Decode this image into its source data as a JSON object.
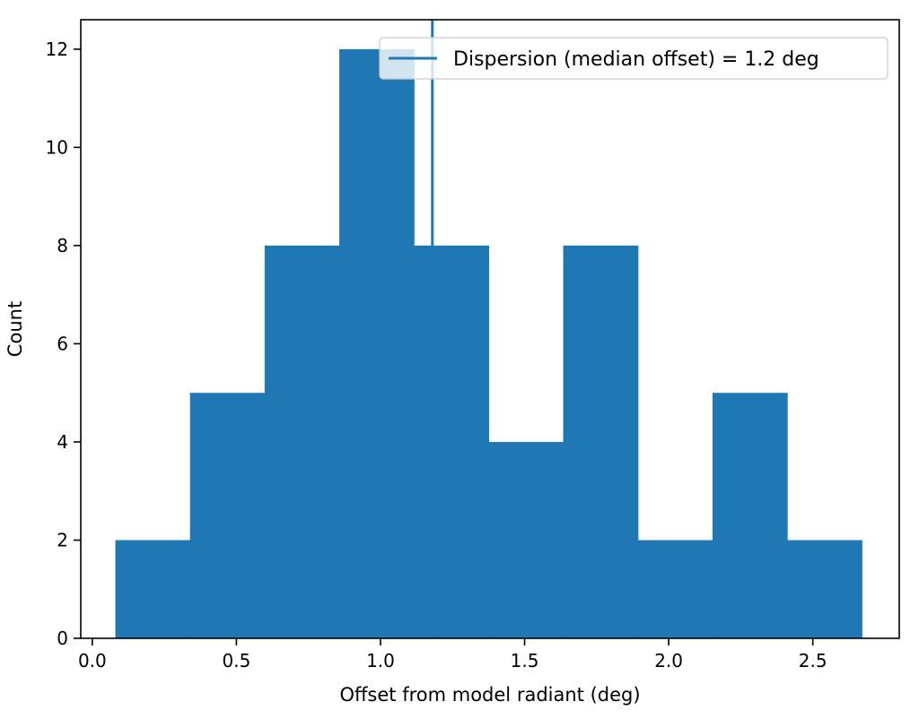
{
  "chart_data": {
    "type": "bar",
    "subtype": "histogram",
    "xlabel": "Offset from model radiant (deg)",
    "ylabel": "Count",
    "xlim": [
      -0.04,
      2.8
    ],
    "ylim": [
      0,
      12.6
    ],
    "xticks": [
      0.0,
      0.5,
      1.0,
      1.5,
      2.0,
      2.5
    ],
    "xtick_labels": [
      "0.0",
      "0.5",
      "1.0",
      "1.5",
      "2.0",
      "2.5"
    ],
    "yticks": [
      0,
      2,
      4,
      6,
      8,
      10,
      12
    ],
    "ytick_labels": [
      "0",
      "2",
      "4",
      "6",
      "8",
      "10",
      "12"
    ],
    "bin_edges": [
      0.08,
      0.339,
      0.598,
      0.857,
      1.116,
      1.375,
      1.634,
      1.893,
      2.152,
      2.411,
      2.67
    ],
    "counts": [
      2,
      5,
      8,
      12,
      8,
      4,
      8,
      2,
      5,
      2
    ],
    "bar_color": "#1f77b4",
    "vline": {
      "x": 1.18,
      "color": "#1f77b4"
    },
    "legend": {
      "placement": "upper-right",
      "entries": [
        {
          "label": "Dispersion (median offset) = 1.2 deg",
          "style": "line",
          "color": "#1f77b4"
        }
      ]
    },
    "grid": false
  }
}
